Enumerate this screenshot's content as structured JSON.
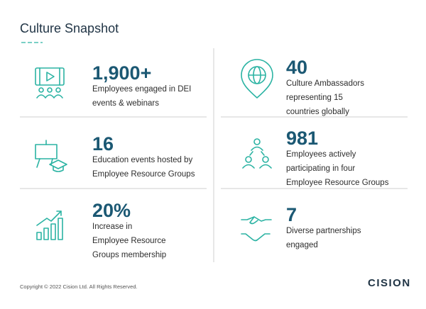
{
  "header": {
    "title": "Culture Snapshot"
  },
  "stats": [
    {
      "value": "1,900+",
      "lines": [
        "Employees engaged in DEI",
        "events & webinars"
      ]
    },
    {
      "value": "40",
      "lines": [
        "Culture Ambassadors",
        "representing 15",
        "countries globally"
      ]
    },
    {
      "value": "16",
      "lines": [
        "Education events hosted by",
        "Employee Resource Groups"
      ]
    },
    {
      "value": "981",
      "lines": [
        "Employees actively",
        "participating in four",
        "Employee Resource Groups"
      ]
    },
    {
      "value": "20%",
      "lines": [
        "Increase in",
        "Employee Resource",
        "Groups membership"
      ]
    },
    {
      "value": "7",
      "lines": [
        "Diverse partnerships",
        "engaged"
      ]
    }
  ],
  "footer": {
    "copyright": "Copyright © 2022 Cision Ltd. All Rights Reserved.",
    "logo": "CISION"
  }
}
